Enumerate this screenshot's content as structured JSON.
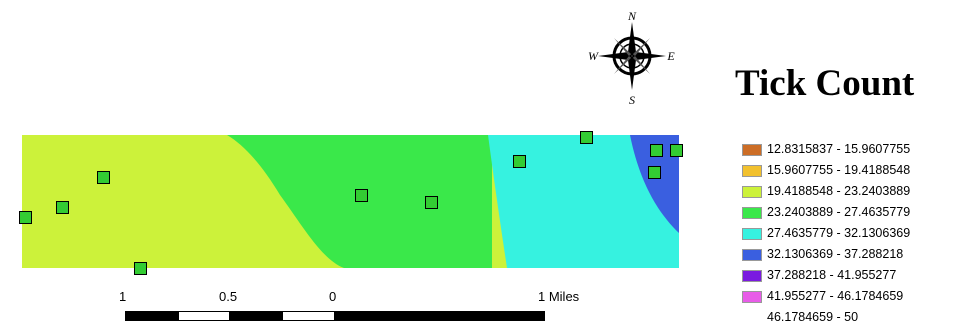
{
  "title_fragment": "",
  "compass": {
    "n": "N",
    "s": "S",
    "e": "E",
    "w": "W"
  },
  "legend": {
    "title": "Tick Count",
    "items": [
      {
        "label": "12.8315837 - 15.9607755",
        "color": "#cc6d26"
      },
      {
        "label": "15.9607755 - 19.4188548",
        "color": "#f2c12e"
      },
      {
        "label": "19.4188548 - 23.2403889",
        "color": "#ccf23a"
      },
      {
        "label": "23.2403889 - 27.4635779",
        "color": "#3ae84a"
      },
      {
        "label": "27.4635779 - 32.1306369",
        "color": "#36f2e0"
      },
      {
        "label": "32.1306369 - 37.288218",
        "color": "#3a5fe0"
      },
      {
        "label": "37.288218 - 41.955277",
        "color": "#7a1ae0"
      },
      {
        "label": "41.955277 - 46.1784659",
        "color": "#e85ce8"
      },
      {
        "label": "46.1784659 - 50",
        "color": ""
      }
    ]
  },
  "scale_bar": {
    "labels": [
      "1",
      "0.5",
      "0",
      "1 Miles"
    ]
  }
}
